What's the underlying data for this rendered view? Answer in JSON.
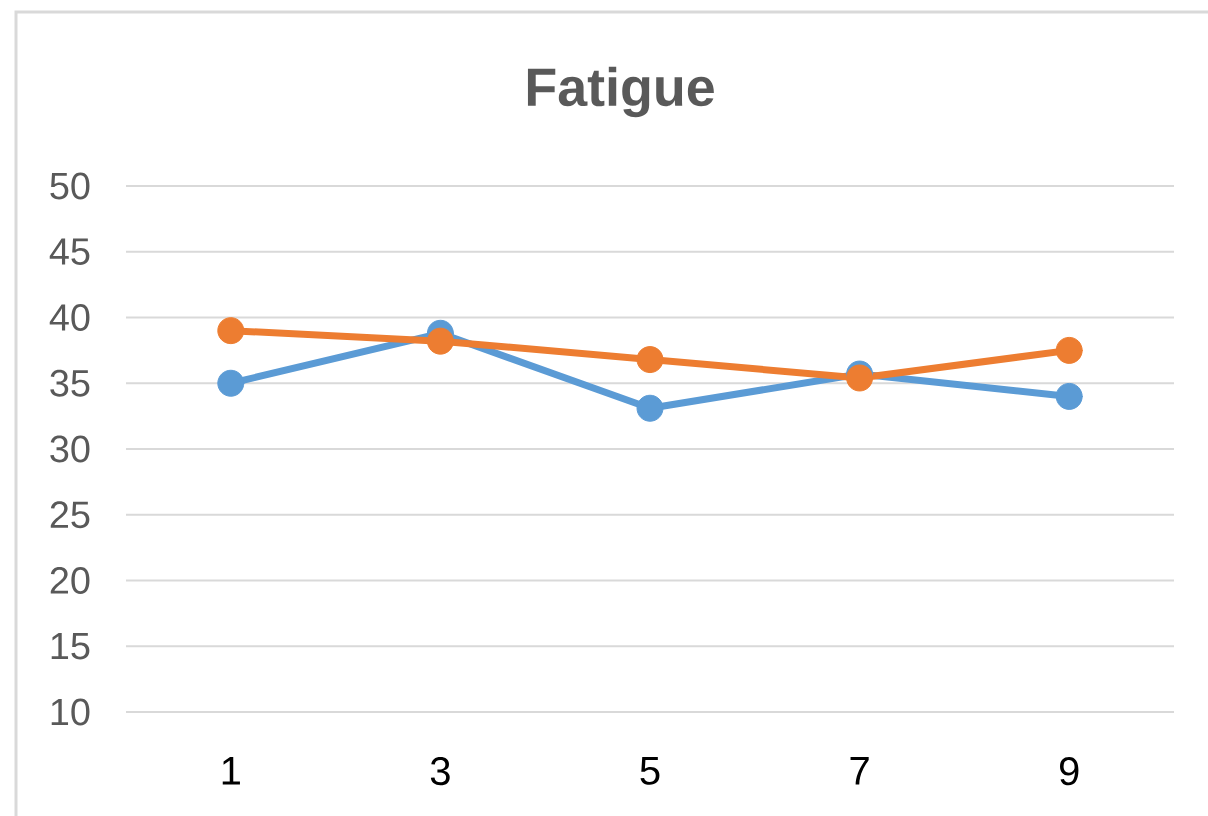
{
  "chart_data": {
    "type": "line",
    "title": "Fatigue",
    "categories": [
      "1",
      "3",
      "5",
      "7",
      "9"
    ],
    "series": [
      {
        "color": "#5b9bd5",
        "values": [
          35,
          38.8,
          33.1,
          35.7,
          34
        ]
      },
      {
        "color": "#ed7d31",
        "values": [
          39,
          38.2,
          36.8,
          35.4,
          37.5
        ]
      }
    ],
    "ylim": [
      10,
      50
    ],
    "yticks": [
      10,
      15,
      20,
      25,
      30,
      35,
      40,
      45,
      50
    ],
    "grid": "y",
    "marker": "circle",
    "line_style": "solid"
  }
}
